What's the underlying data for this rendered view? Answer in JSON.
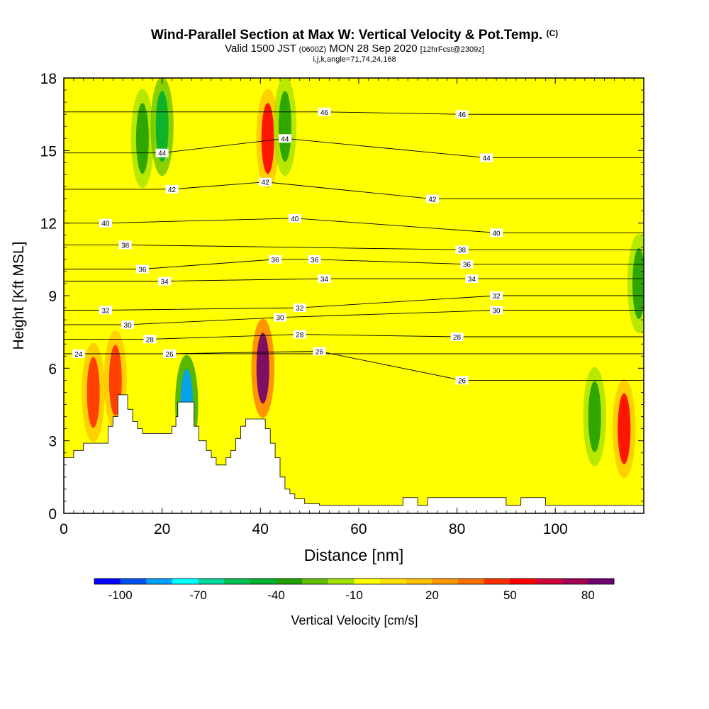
{
  "title_block": {
    "title": "Wind-Parallel Section at Max W: Vertical Velocity & Pot.Temp.",
    "copyright": "(C)",
    "valid_a": "Valid 1500 JST",
    "valid_utc": "(0600Z)",
    "valid_b": "MON 28 Sep 2020",
    "forecast": "[12hrFcst@2309z]",
    "indices": "i,j,k,angle=71,74,24,168"
  },
  "chart_data": {
    "type": "heatmap",
    "xlabel": "Distance [nm]",
    "ylabel": "Height [Kft MSL]",
    "xlim": [
      0,
      118
    ],
    "ylim": [
      0,
      18
    ],
    "x_ticks": [
      0,
      20,
      40,
      60,
      80,
      100
    ],
    "y_ticks": [
      0,
      3,
      6,
      9,
      12,
      15,
      18
    ],
    "colorbar": {
      "label": "Vertical Velocity [cm/s]",
      "tick_labels": [
        "-100",
        "-70",
        "-40",
        "-10",
        "20",
        "50",
        "80"
      ],
      "colors": [
        "#0000ff",
        "#0050f0",
        "#00a0ff",
        "#00ffff",
        "#00d8a0",
        "#00c050",
        "#00b030",
        "#20a000",
        "#60c000",
        "#a0e000",
        "#ffff00",
        "#ffe000",
        "#ffc000",
        "#ff9900",
        "#ff7000",
        "#ff3000",
        "#ff0000",
        "#d0003a",
        "#a00050",
        "#700070"
      ]
    },
    "velocity_features": [
      {
        "x": 6,
        "z": 5.0,
        "w": 50
      },
      {
        "x": 10.5,
        "z": 5.5,
        "w": 45
      },
      {
        "x": 16,
        "z": 15.5,
        "w": -30
      },
      {
        "x": 20,
        "z": 16,
        "w": -40
      },
      {
        "x": 25,
        "z": 4.5,
        "w": -80
      },
      {
        "x": 40.5,
        "z": 6.0,
        "w": 90
      },
      {
        "x": 41.5,
        "z": 15.5,
        "w": 60
      },
      {
        "x": 45,
        "z": 16,
        "w": -30
      },
      {
        "x": 114,
        "z": 3.5,
        "w": 60
      },
      {
        "x": 117,
        "z": 9.5,
        "w": -35
      },
      {
        "x": 108,
        "z": 4.0,
        "w": -30
      }
    ],
    "theta_contour_labels": [
      {
        "text": "24",
        "x": 3,
        "z": 6.6
      },
      {
        "text": "26",
        "x": 21.5,
        "z": 6.6
      },
      {
        "text": "26",
        "x": 52,
        "z": 6.7
      },
      {
        "text": "26",
        "x": 81,
        "z": 5.5
      },
      {
        "text": "28",
        "x": 17.5,
        "z": 7.2
      },
      {
        "text": "28",
        "x": 48,
        "z": 7.4
      },
      {
        "text": "28",
        "x": 80,
        "z": 7.3
      },
      {
        "text": "30",
        "x": 13,
        "z": 7.8
      },
      {
        "text": "30",
        "x": 44,
        "z": 8.1
      },
      {
        "text": "30",
        "x": 88,
        "z": 8.4
      },
      {
        "text": "32",
        "x": 8.5,
        "z": 8.4
      },
      {
        "text": "32",
        "x": 48,
        "z": 8.5
      },
      {
        "text": "32",
        "x": 88,
        "z": 9.0
      },
      {
        "text": "34",
        "x": 20.5,
        "z": 9.6
      },
      {
        "text": "34",
        "x": 53,
        "z": 9.7
      },
      {
        "text": "34",
        "x": 83,
        "z": 9.7
      },
      {
        "text": "36",
        "x": 16,
        "z": 10.1
      },
      {
        "text": "36",
        "x": 43,
        "z": 10.5
      },
      {
        "text": "36",
        "x": 51,
        "z": 10.5
      },
      {
        "text": "36",
        "x": 82,
        "z": 10.3
      },
      {
        "text": "38",
        "x": 12.5,
        "z": 11.1
      },
      {
        "text": "38",
        "x": 81,
        "z": 10.9
      },
      {
        "text": "40",
        "x": 8.5,
        "z": 12.0
      },
      {
        "text": "40",
        "x": 47,
        "z": 12.2
      },
      {
        "text": "40",
        "x": 88,
        "z": 11.6
      },
      {
        "text": "42",
        "x": 22,
        "z": 13.4
      },
      {
        "text": "42",
        "x": 41,
        "z": 13.7
      },
      {
        "text": "42",
        "x": 75,
        "z": 13.0
      },
      {
        "text": "44",
        "x": 20,
        "z": 14.9
      },
      {
        "text": "44",
        "x": 45,
        "z": 15.5
      },
      {
        "text": "44",
        "x": 86,
        "z": 14.7
      },
      {
        "text": "46",
        "x": 53,
        "z": 16.6
      },
      {
        "text": "46",
        "x": 81,
        "z": 16.5
      }
    ],
    "terrain": [
      [
        0,
        2.3
      ],
      [
        2,
        2.3
      ],
      [
        2,
        2.6
      ],
      [
        4,
        2.6
      ],
      [
        4,
        2.9
      ],
      [
        9,
        2.9
      ],
      [
        9,
        3.6
      ],
      [
        10,
        3.6
      ],
      [
        10,
        4.0
      ],
      [
        11,
        4.0
      ],
      [
        11,
        4.9
      ],
      [
        13,
        4.9
      ],
      [
        13,
        4.3
      ],
      [
        14,
        4.3
      ],
      [
        14,
        3.8
      ],
      [
        15,
        3.8
      ],
      [
        15,
        3.5
      ],
      [
        16,
        3.5
      ],
      [
        16,
        3.3
      ],
      [
        22,
        3.3
      ],
      [
        22,
        3.6
      ],
      [
        22.8,
        3.6
      ],
      [
        22.8,
        4.0
      ],
      [
        23.2,
        4.0
      ],
      [
        23.2,
        4.6
      ],
      [
        26.5,
        4.6
      ],
      [
        26.5,
        3.6
      ],
      [
        27.5,
        3.6
      ],
      [
        27.5,
        3.0
      ],
      [
        29,
        3.0
      ],
      [
        29,
        2.6
      ],
      [
        30,
        2.6
      ],
      [
        30,
        2.3
      ],
      [
        31,
        2.3
      ],
      [
        31,
        2.0
      ],
      [
        33,
        2.0
      ],
      [
        33,
        2.3
      ],
      [
        34,
        2.3
      ],
      [
        34,
        2.6
      ],
      [
        35,
        2.6
      ],
      [
        35,
        3.1
      ],
      [
        36,
        3.1
      ],
      [
        36,
        3.6
      ],
      [
        37,
        3.6
      ],
      [
        37,
        3.9
      ],
      [
        41,
        3.9
      ],
      [
        41,
        3.5
      ],
      [
        42,
        3.5
      ],
      [
        42,
        2.9
      ],
      [
        43,
        2.9
      ],
      [
        43,
        2.3
      ],
      [
        44,
        2.3
      ],
      [
        44,
        1.5
      ],
      [
        45,
        1.5
      ],
      [
        45,
        1.0
      ],
      [
        46,
        1.0
      ],
      [
        46,
        0.8
      ],
      [
        47,
        0.8
      ],
      [
        47,
        0.6
      ],
      [
        49,
        0.6
      ],
      [
        49,
        0.4
      ],
      [
        52,
        0.4
      ],
      [
        52,
        0.33
      ],
      [
        69,
        0.33
      ],
      [
        69,
        0.65
      ],
      [
        72,
        0.65
      ],
      [
        72,
        0.33
      ],
      [
        74,
        0.33
      ],
      [
        74,
        0.65
      ],
      [
        90,
        0.65
      ],
      [
        90,
        0.33
      ],
      [
        93,
        0.33
      ],
      [
        93,
        0.65
      ],
      [
        98,
        0.65
      ],
      [
        98,
        0.33
      ],
      [
        118,
        0.33
      ],
      [
        118,
        0
      ],
      [
        0,
        0
      ]
    ]
  }
}
